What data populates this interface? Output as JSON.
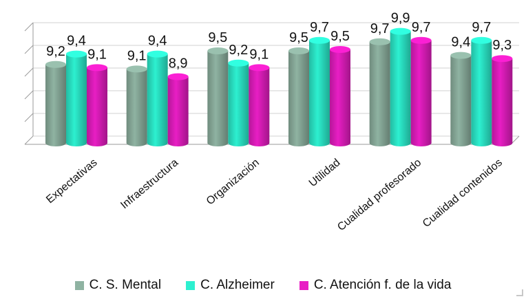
{
  "chart_data": {
    "type": "bar",
    "title": "",
    "categories": [
      "Expectativas",
      "Infraestructura",
      "Organización",
      "Utilidad",
      "Cualidad profesorado",
      "Cualidad contenidos"
    ],
    "series": [
      {
        "name": "C. S. Mental",
        "values": [
          9.2,
          9.1,
          9.5,
          9.5,
          9.7,
          9.4
        ],
        "color": "#8fb3a2"
      },
      {
        "name": "C. Alzheimer",
        "values": [
          9.4,
          9.4,
          9.2,
          9.7,
          9.9,
          9.7
        ],
        "color": "#2df0d0"
      },
      {
        "name": "C. Atención f. de la vida",
        "values": [
          9.1,
          8.9,
          9.1,
          9.5,
          9.7,
          9.3
        ],
        "color": "#e81ec4"
      }
    ],
    "value_labels": [
      [
        "9,2",
        "9,1",
        "9,5",
        "9,5",
        "9,7",
        "9,4"
      ],
      [
        "9,4",
        "9,4",
        "9,2",
        "9,7",
        "9,9",
        "9,7"
      ],
      [
        "9,1",
        "8,9",
        "9,1",
        "9,5",
        "9,7",
        "9,3"
      ]
    ],
    "ylim": [
      7.5,
      10.0
    ],
    "grid": true,
    "legend_position": "bottom"
  }
}
